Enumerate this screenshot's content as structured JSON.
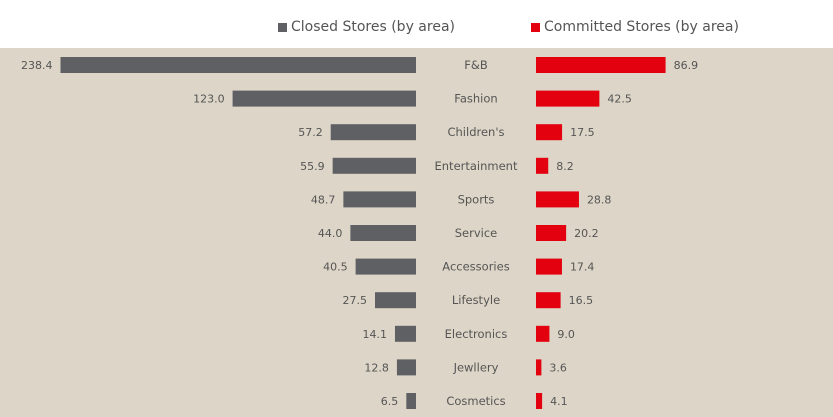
{
  "chart_data": {
    "type": "bar",
    "orientation": "horizontal-butterfly",
    "categories": [
      "F&B",
      "Fashion",
      "Children's",
      "Entertainment",
      "Sports",
      "Service",
      "Accessories",
      "Lifestyle",
      "Electronics",
      "Jewllery",
      "Cosmetics"
    ],
    "series": [
      {
        "name": "Closed Stores (by area)",
        "color": "#5f6064",
        "side": "left",
        "values": [
          238.4,
          123.0,
          57.2,
          55.9,
          48.7,
          44.0,
          40.5,
          27.5,
          14.1,
          12.8,
          6.5
        ],
        "labels": [
          "238.4",
          "123.0",
          "57.2",
          "55.9",
          "48.7",
          "44.0",
          "40.5",
          "27.5",
          "14.1",
          "12.8",
          "6.5"
        ]
      },
      {
        "name": "Committed Stores (by area)",
        "color": "#e3000f",
        "side": "right",
        "values": [
          86.9,
          42.5,
          17.5,
          8.2,
          28.8,
          20.2,
          17.4,
          16.5,
          9.0,
          3.6,
          4.1
        ],
        "labels": [
          "86.9",
          "42.5",
          "17.5",
          "8.2",
          "28.8",
          "20.2",
          "17.4",
          "16.5",
          "9.0",
          "3.6",
          "4.1"
        ]
      }
    ],
    "legend_position": "top-right",
    "grid": false
  }
}
